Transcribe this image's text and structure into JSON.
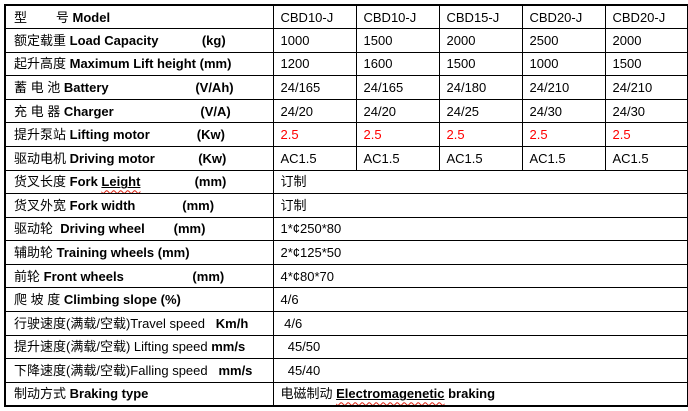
{
  "colors": {
    "text": "#000000",
    "border": "#000000",
    "background": "#ffffff",
    "highlight_red": "#ff0000",
    "spellcheck_wavy": "#dd2211"
  },
  "table": {
    "rows": [
      {
        "label": [
          {
            "t": "型        号 "
          },
          {
            "t": "Model",
            "b": true
          }
        ],
        "values": [
          "CBD10-J",
          "CBD10-J",
          "CBD15-J",
          "CBD20-J",
          "CBD20-J"
        ]
      },
      {
        "label": [
          {
            "t": "额定载重 "
          },
          {
            "t": "Load Capacity",
            "b": true
          },
          {
            "t": "            (kg)",
            "b": true
          }
        ],
        "values": [
          "1000",
          "1500",
          "2000",
          "2500",
          "2000"
        ]
      },
      {
        "label": [
          {
            "t": "起升高度 "
          },
          {
            "t": "Maximum Lift height (mm)",
            "b": true
          }
        ],
        "values": [
          "1200",
          "1600",
          "1500",
          "1000",
          "1500"
        ]
      },
      {
        "label": [
          {
            "t": "蓄 电 池 "
          },
          {
            "t": "Battery",
            "b": true
          },
          {
            "t": "                        (V/Ah)",
            "b": true
          }
        ],
        "values": [
          "24/165",
          "24/165",
          "24/180",
          "24/210",
          "24/210"
        ]
      },
      {
        "label": [
          {
            "t": "充 电 器 "
          },
          {
            "t": "Charger",
            "b": true
          },
          {
            "t": "                        (V/A)",
            "b": true
          }
        ],
        "values": [
          "24/20",
          "24/20",
          "24/25",
          "24/30",
          "24/30"
        ]
      },
      {
        "label": [
          {
            "t": "提升泵站 "
          },
          {
            "t": "Lifting motor",
            "b": true
          },
          {
            "t": "             (Kw)",
            "b": true
          }
        ],
        "values": [
          {
            "t": "2.5",
            "c": "#ff0000"
          },
          {
            "t": "2.5",
            "c": "#ff0000"
          },
          {
            "t": "2.5",
            "c": "#ff0000"
          },
          {
            "t": "2.5",
            "c": "#ff0000"
          },
          {
            "t": "2.5",
            "c": "#ff0000"
          }
        ]
      },
      {
        "label": [
          {
            "t": "驱动电机 "
          },
          {
            "t": "Driving motor",
            "b": true
          },
          {
            "t": "            (Kw)",
            "b": true
          }
        ],
        "values": [
          "AC1.5",
          "AC1.5",
          "AC1.5",
          "AC1.5",
          "AC1.5"
        ]
      },
      {
        "label": [
          {
            "t": "货叉长度 "
          },
          {
            "t": "Fork ",
            "b": true
          },
          {
            "t": "Leight",
            "b": true,
            "u": true,
            "w": true
          },
          {
            "t": "               (mm)",
            "b": true
          }
        ],
        "merged": true,
        "values": [
          "订制"
        ]
      },
      {
        "label": [
          {
            "t": "货叉外宽 "
          },
          {
            "t": "Fork width",
            "b": true
          },
          {
            "t": "             (mm)",
            "b": true
          }
        ],
        "merged": true,
        "values": [
          "订制"
        ]
      },
      {
        "label": [
          {
            "t": "驱动轮  "
          },
          {
            "t": "Driving wheel",
            "b": true
          },
          {
            "t": "        (mm)",
            "b": true
          }
        ],
        "merged": true,
        "values": [
          "1*¢250*80"
        ]
      },
      {
        "label": [
          {
            "t": "辅助轮 "
          },
          {
            "t": "Training wheels (mm)",
            "b": true
          }
        ],
        "merged": true,
        "values": [
          "2*¢125*50"
        ]
      },
      {
        "label": [
          {
            "t": "前轮 "
          },
          {
            "t": "Front wheels",
            "b": true
          },
          {
            "t": "                   (mm)",
            "b": true
          }
        ],
        "merged": true,
        "values": [
          "4*¢80*70"
        ]
      },
      {
        "label": [
          {
            "t": "爬 坡 度 "
          },
          {
            "t": "Climbing slope (%)",
            "b": true
          }
        ],
        "merged": true,
        "values": [
          "4/6"
        ]
      },
      {
        "label": [
          {
            "t": "行驶速度(满载/空载)"
          },
          {
            "t": "Travel speed"
          },
          {
            "t": "   Km/h",
            "b": true
          }
        ],
        "merged": true,
        "values": [
          " 4/6"
        ]
      },
      {
        "label": [
          {
            "t": "提升速度(满载/空载) "
          },
          {
            "t": "Lifting speed "
          },
          {
            "t": "mm/s",
            "b": true
          }
        ],
        "merged": true,
        "values": [
          "  45/50"
        ]
      },
      {
        "label": [
          {
            "t": "下降速度(满载/空载)"
          },
          {
            "t": "Falling speed"
          },
          {
            "t": "   mm/s",
            "b": true
          }
        ],
        "merged": true,
        "values": [
          "  45/40"
        ]
      },
      {
        "label": [
          {
            "t": "制动方式 "
          },
          {
            "t": "Braking type",
            "b": true
          }
        ],
        "merged": true,
        "values": [
          {
            "t": "电磁制动 "
          },
          {
            "t": "Electromagenetic",
            "b": true,
            "u": true,
            "w": true
          },
          {
            "t": " braking",
            "b": true
          }
        ]
      }
    ]
  }
}
